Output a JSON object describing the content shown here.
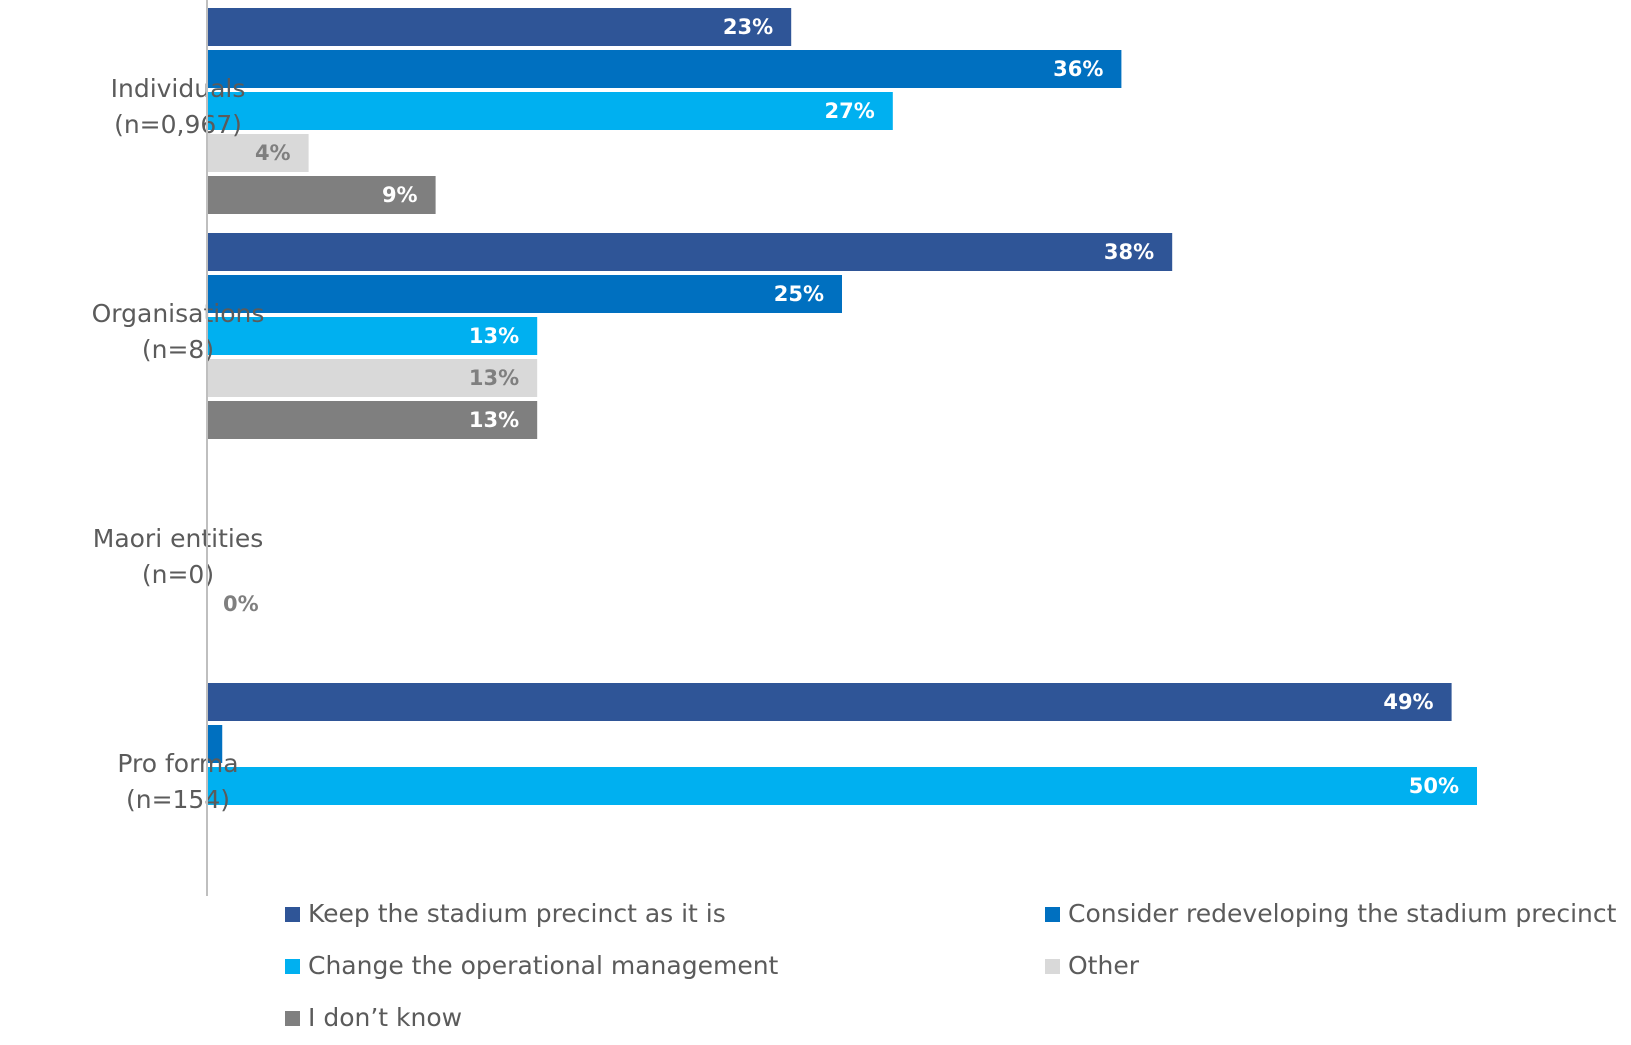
{
  "chart_data": {
    "type": "bar",
    "orientation": "horizontal",
    "categories": [
      [
        "Individuals",
        "(n=0,967)"
      ],
      [
        "Organisations",
        "(n=8)"
      ],
      [
        "Maori entities",
        "(n=0)"
      ],
      [
        "Pro forma",
        "(n=154)"
      ]
    ],
    "series": [
      {
        "name": "Keep the stadium precinct as it is",
        "color": "#2f5597",
        "label_color": "#ffffff",
        "values": [
          23,
          38,
          0,
          49
        ],
        "labels": [
          "23%",
          "38%",
          "",
          "49%"
        ]
      },
      {
        "name": "Consider redeveloping the stadium precinct",
        "color": "#0070c0",
        "label_color": "#ffffff",
        "values": [
          36,
          25,
          0,
          0.6
        ],
        "labels": [
          "36%",
          "25%",
          "",
          ""
        ]
      },
      {
        "name": "Change the operational management",
        "color": "#00b0f0",
        "label_color": "#ffffff",
        "values": [
          27,
          13,
          0,
          50
        ],
        "labels": [
          "27%",
          "13%",
          "",
          "50%"
        ]
      },
      {
        "name": "Other",
        "color": "#d9d9d9",
        "label_color": "#7f7f7f",
        "values": [
          4,
          13,
          0,
          0
        ],
        "labels": [
          "4%",
          "13%",
          "0%",
          ""
        ]
      },
      {
        "name": "I don’t know",
        "color": "#7f7f7f",
        "label_color": "#ffffff",
        "values": [
          9,
          13,
          0,
          0
        ],
        "labels": [
          "9%",
          "13%",
          "",
          ""
        ]
      }
    ],
    "xlim": [
      0,
      50
    ],
    "grid": false,
    "axis_line_color": "#bfbfbf",
    "legend": {
      "position": "bottom",
      "columns": 2
    }
  }
}
